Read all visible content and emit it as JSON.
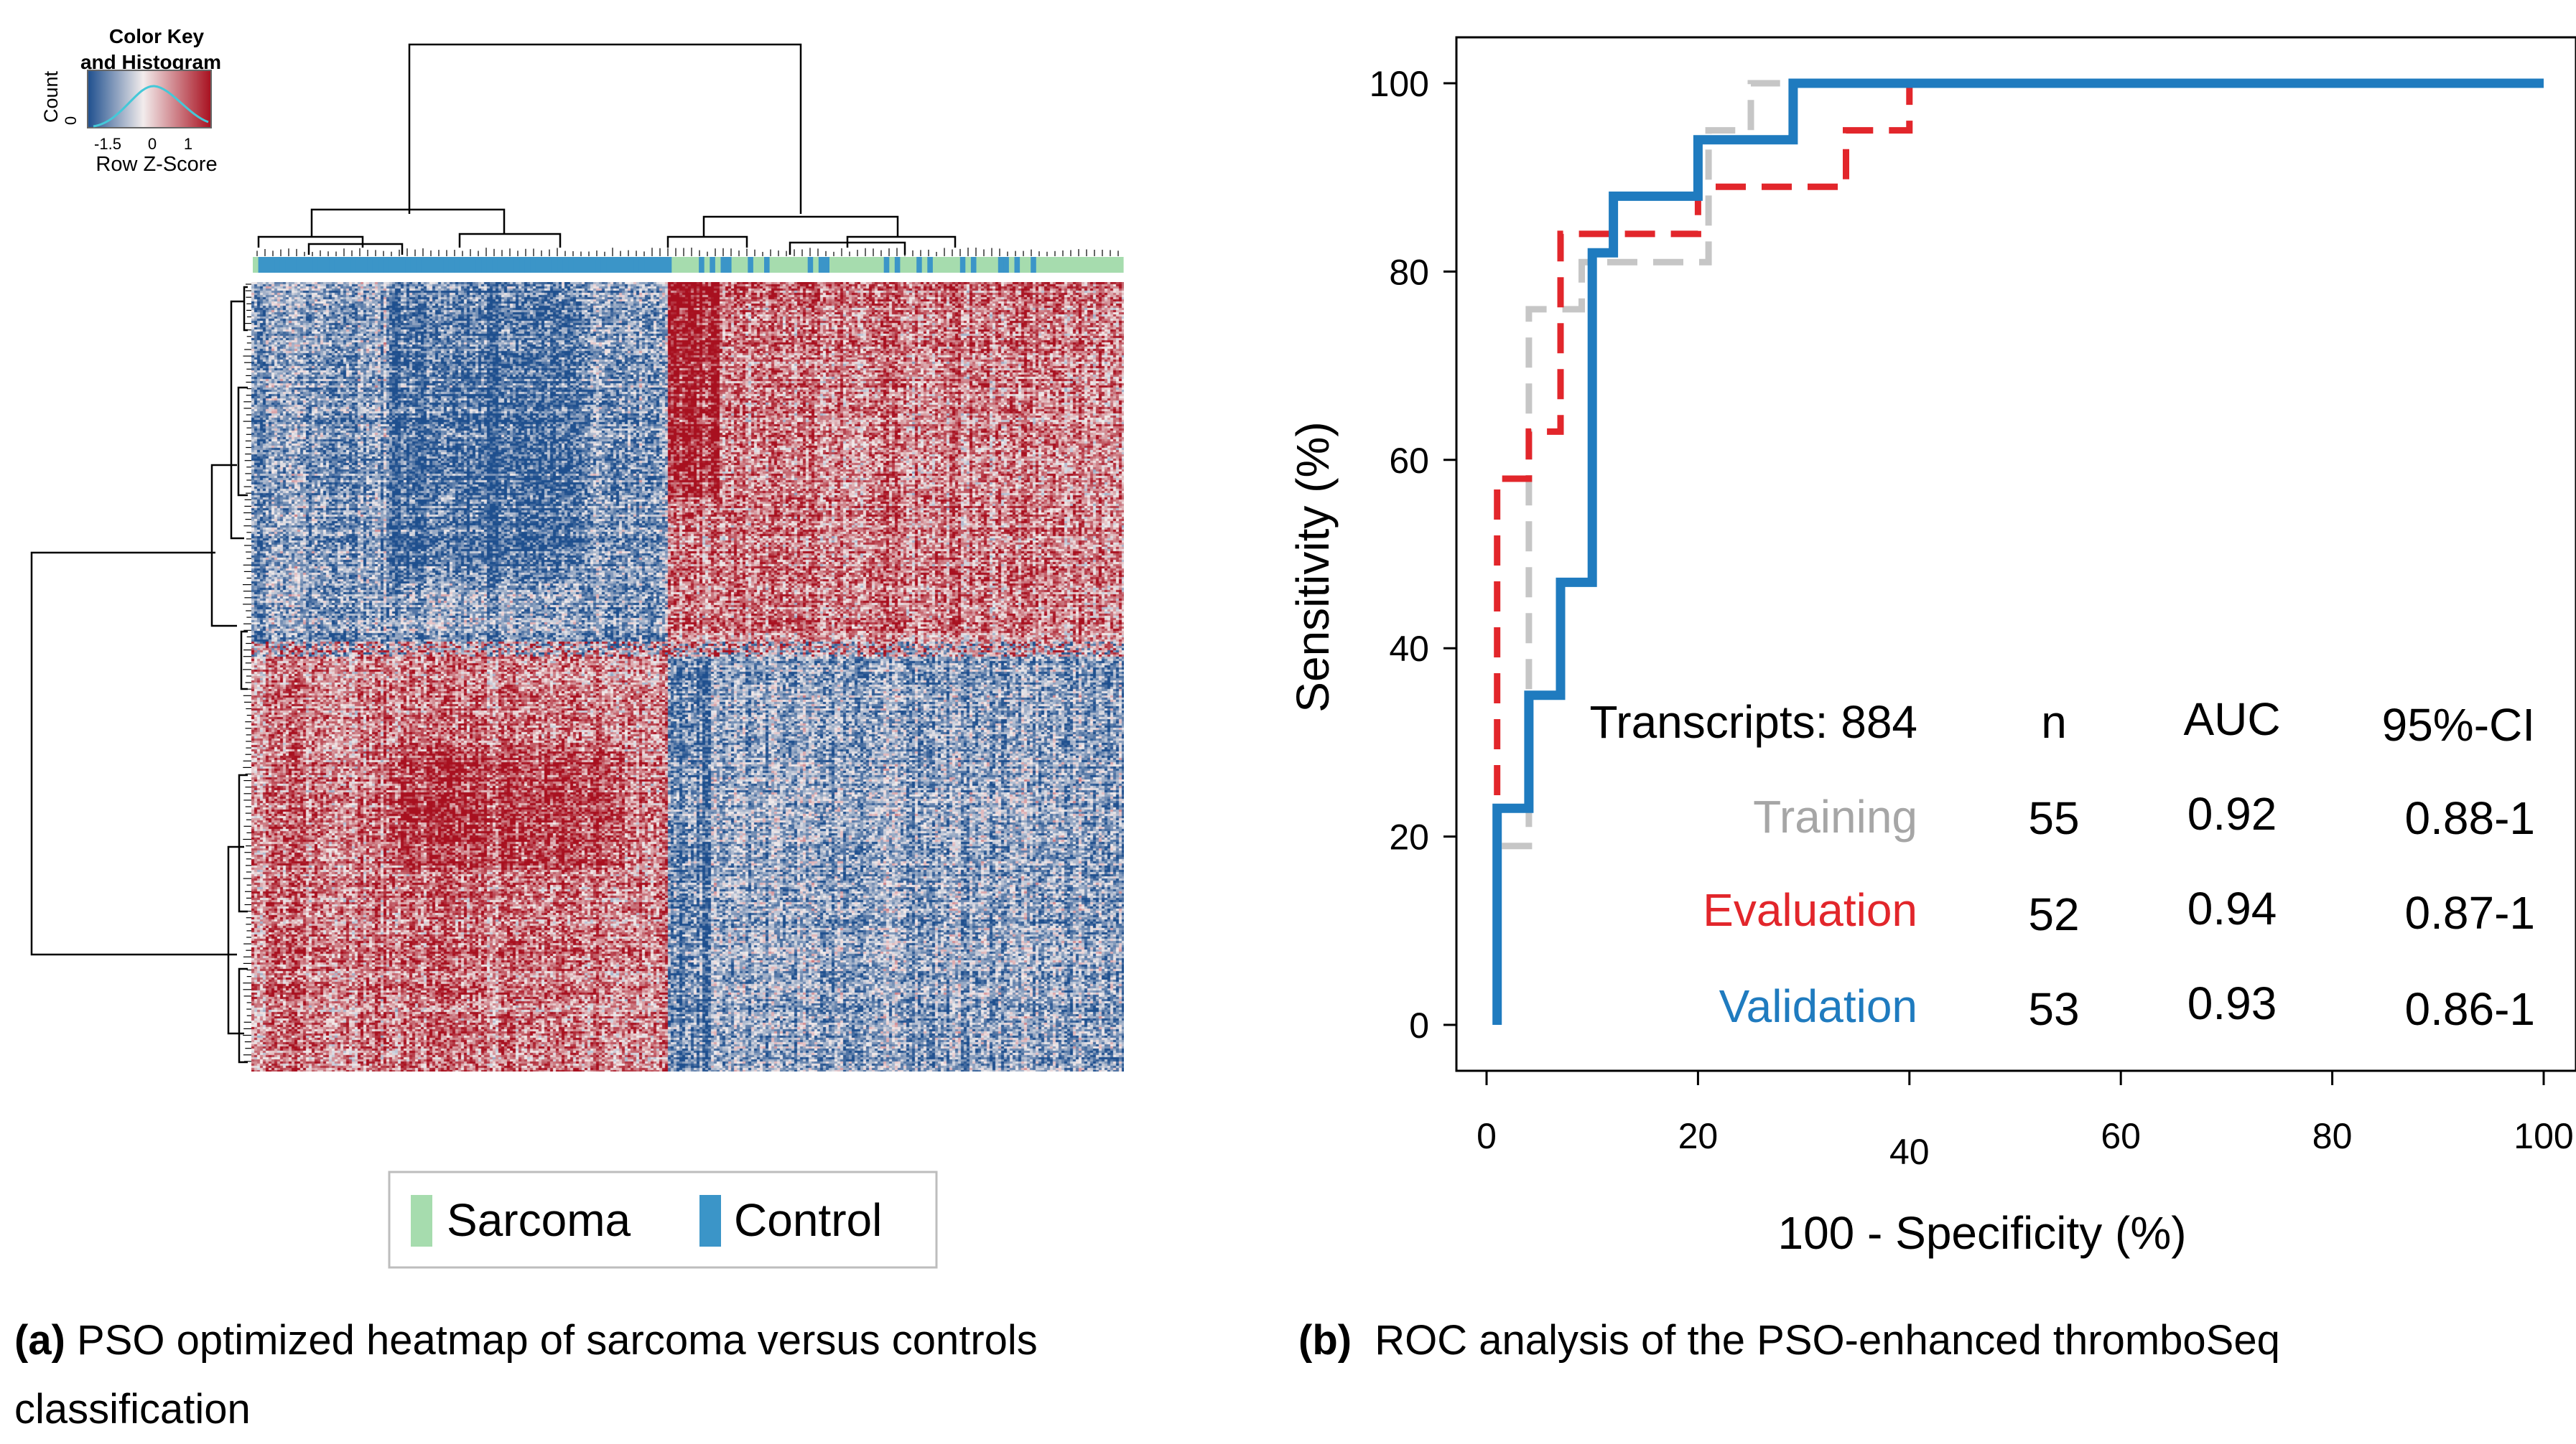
{
  "heatmap": {
    "color_key": {
      "title_line1": "Color Key",
      "title_line2": "and Histogram",
      "y_label": "Count",
      "y_tick": "0",
      "x_ticks": [
        "-1.5",
        "0",
        "1"
      ],
      "x_label": "Row Z-Score"
    },
    "legend": [
      {
        "label": "Sarcoma",
        "color": "#a6dcae"
      },
      {
        "label": "Control",
        "color": "#3b95c8"
      }
    ],
    "colors": {
      "low": "#1e4f8e",
      "mid": "#f2ecec",
      "high": "#a8101f"
    }
  },
  "chart_data": {
    "type": "line",
    "title": "",
    "xlabel": "100 - Specificity (%)",
    "ylabel": "Sensitivity (%)",
    "xlim": [
      0,
      100
    ],
    "ylim": [
      0,
      100
    ],
    "x_ticks": [
      0,
      20,
      40,
      60,
      80,
      100
    ],
    "y_ticks": [
      0,
      20,
      40,
      60,
      80,
      100
    ],
    "series": [
      {
        "name": "Training",
        "color": "#c6c6c6",
        "style": "dashed",
        "points": [
          [
            1,
            0
          ],
          [
            1,
            19
          ],
          [
            4,
            19
          ],
          [
            4,
            76
          ],
          [
            9,
            76
          ],
          [
            9,
            81
          ],
          [
            21,
            81
          ],
          [
            21,
            95
          ],
          [
            25,
            95
          ],
          [
            25,
            100
          ],
          [
            40,
            100
          ],
          [
            100,
            100
          ]
        ]
      },
      {
        "name": "Evaluation",
        "color": "#e2262b",
        "style": "dashed",
        "points": [
          [
            1,
            0
          ],
          [
            1,
            58
          ],
          [
            4,
            58
          ],
          [
            4,
            63
          ],
          [
            7,
            63
          ],
          [
            7,
            84
          ],
          [
            20,
            84
          ],
          [
            20,
            89
          ],
          [
            34,
            89
          ],
          [
            34,
            95
          ],
          [
            40,
            95
          ],
          [
            40,
            100
          ],
          [
            100,
            100
          ]
        ]
      },
      {
        "name": "Validation",
        "color": "#1f7bbf",
        "style": "solid",
        "points": [
          [
            1,
            0
          ],
          [
            1,
            23
          ],
          [
            4,
            23
          ],
          [
            4,
            35
          ],
          [
            7,
            35
          ],
          [
            7,
            47
          ],
          [
            10,
            47
          ],
          [
            10,
            82
          ],
          [
            12,
            82
          ],
          [
            12,
            88
          ],
          [
            20,
            88
          ],
          [
            20,
            94
          ],
          [
            29,
            94
          ],
          [
            29,
            100
          ],
          [
            100,
            100
          ]
        ]
      }
    ],
    "table": {
      "headers": {
        "label": "Transcripts: 884",
        "n": "n",
        "auc": "AUC",
        "ci": "95%-CI"
      },
      "rows": [
        {
          "name": "Training",
          "n": "55",
          "auc": "0.92",
          "ci": "0.88-1",
          "color": "#a6a6a6"
        },
        {
          "name": "Evaluation",
          "n": "52",
          "auc": "0.94",
          "ci": "0.87-1",
          "color": "#e2262b"
        },
        {
          "name": "Validation",
          "n": "53",
          "auc": "0.93",
          "ci": "0.86-1",
          "color": "#1f7bbf"
        }
      ]
    }
  },
  "captions": {
    "a_label": "(a)",
    "a_text": "PSO optimized heatmap of sarcoma versus controls",
    "a_text_2": "classification",
    "b_label": "(b)",
    "b_text": "ROC analysis of the PSO-enhanced thromboSeq"
  }
}
